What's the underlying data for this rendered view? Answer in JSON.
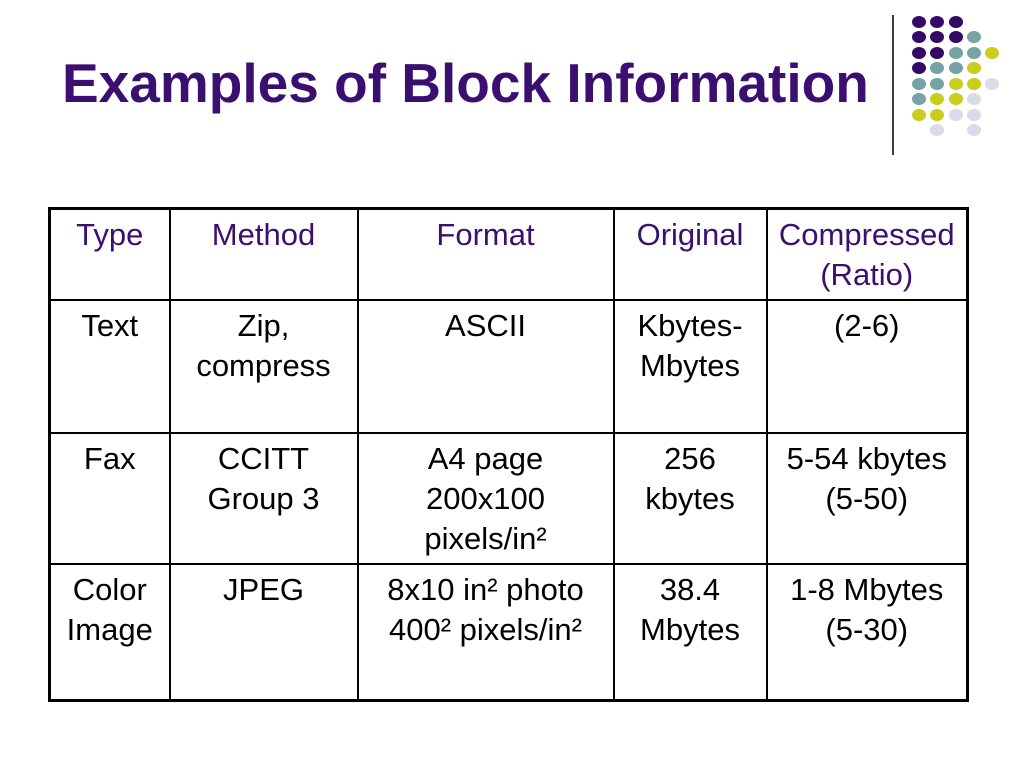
{
  "slide": {
    "title": "Examples of Block Information"
  },
  "table": {
    "headers": [
      "Type",
      "Method",
      "Format",
      "Original",
      "Compressed\n(Ratio)"
    ],
    "rows": [
      {
        "cells": [
          "Text",
          "Zip,\ncompress",
          "ASCII",
          "Kbytes-\nMbytes",
          "(2-6)"
        ]
      },
      {
        "cells": [
          "Fax",
          "CCITT\nGroup 3",
          "A4 page\n200x100\npixels/in²",
          "256\nkbytes",
          "5-54 kbytes\n(5-50)"
        ]
      },
      {
        "cells": [
          "Color\nImage",
          "JPEG",
          "8x10 in² photo\n400² pixels/in²",
          "38.4\nMbytes",
          "1-8 Mbytes\n(5-30)"
        ]
      }
    ]
  },
  "colors": {
    "title": "#3B0F70",
    "header_text": "#3B0F70",
    "body_text": "#000000",
    "table_border": "#000000"
  },
  "decoration": {
    "divider_color": "#3C3C3C",
    "dot_colors": {
      "P": "#330A66",
      "T": "#76A3A3",
      "Y": "#C9CD1B",
      "L": "#DADAE9"
    },
    "dot_pattern": [
      "PPP..",
      "PPPT.",
      "PPTTY",
      "PTTY.",
      "TTYYL",
      "TYYL.",
      "YYLL.",
      ".L.L."
    ]
  }
}
